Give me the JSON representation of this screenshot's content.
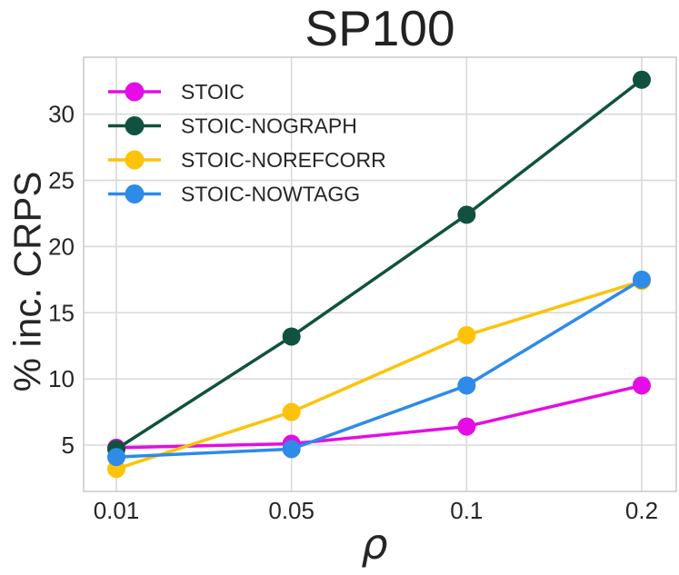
{
  "figure": {
    "title": "SP100",
    "xlabel": "ρ",
    "ylabel": "% inc. CRPS"
  },
  "chart_data": {
    "type": "line",
    "title": "SP100",
    "xlabel": "ρ",
    "ylabel": "% inc. CRPS",
    "categories": [
      "0.01",
      "0.05",
      "0.1",
      "0.2"
    ],
    "series": [
      {
        "name": "STOIC",
        "color": "#E50CE5",
        "marker": "circle",
        "values": [
          4.8,
          5.1,
          6.4,
          9.5
        ]
      },
      {
        "name": "STOIC-NOGRAPH",
        "color": "#10523F",
        "marker": "circle",
        "values": [
          4.7,
          13.2,
          22.4,
          32.6
        ]
      },
      {
        "name": "STOIC-NOREFCORR",
        "color": "#FDC30A",
        "marker": "circle",
        "values": [
          3.2,
          7.5,
          13.3,
          17.4
        ]
      },
      {
        "name": "STOIC-NOWTAGG",
        "color": "#2E8BE8",
        "marker": "circle",
        "values": [
          4.1,
          4.7,
          9.5,
          17.5
        ]
      }
    ],
    "yticks": [
      5,
      10,
      15,
      20,
      25,
      30
    ],
    "ylim": [
      1.5,
      34.3
    ],
    "grid": true,
    "legend_position": "upper-left",
    "legend_frame": false,
    "colors": {
      "grid": "#D9D9D9",
      "spine": "#C9C9C9",
      "text": "#262626",
      "title": "#222222",
      "background": "#FFFFFF"
    }
  }
}
